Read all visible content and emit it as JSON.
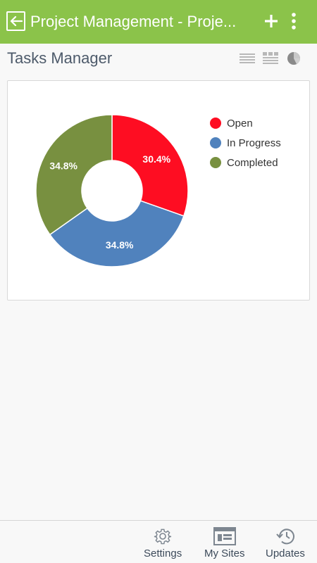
{
  "header": {
    "title": "Project Management - Proje...",
    "back_icon": "back-arrow-icon",
    "add_icon": "plus-icon",
    "more_icon": "more-vertical-icon",
    "background": "#8bc34a"
  },
  "page": {
    "title": "Tasks Manager",
    "view_icons": [
      "list-view-icon",
      "grid-view-icon",
      "chart-view-icon"
    ]
  },
  "chart_data": {
    "type": "pie",
    "donut": true,
    "legend_position": "right",
    "series": [
      {
        "name": "Open",
        "value": 30.4,
        "label": "30.4%",
        "color": "#fe0d22"
      },
      {
        "name": "In Progress",
        "value": 34.8,
        "label": "34.8%",
        "color": "#5082bd"
      },
      {
        "name": "Completed",
        "value": 34.8,
        "label": "34.8%",
        "color": "#789040"
      }
    ]
  },
  "bottom_nav": {
    "items": [
      {
        "label": "Settings",
        "icon": "gear-icon"
      },
      {
        "label": "My Sites",
        "icon": "sites-icon"
      },
      {
        "label": "Updates",
        "icon": "history-icon"
      }
    ]
  }
}
